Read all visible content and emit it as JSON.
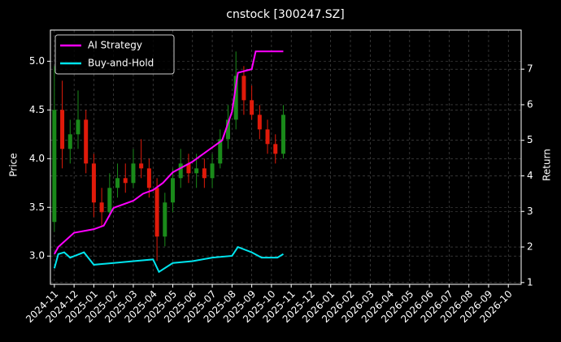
{
  "chart_data": {
    "type": "candlestick",
    "title": "cnstock [300247.SZ]",
    "ylabel": "Price",
    "y2label": "Return",
    "x": [
      0,
      0.4,
      0.8,
      1.2,
      1.6,
      2.0,
      2.4,
      2.8,
      3.2,
      3.6,
      4.0,
      4.4,
      4.8,
      5.2,
      5.6,
      6.0,
      6.4,
      6.8,
      7.2,
      7.6,
      8.0,
      8.4,
      8.8,
      9.2,
      9.6,
      10.0,
      10.4,
      10.8,
      11.2,
      11.6
    ],
    "open": [
      3.35,
      4.5,
      4.1,
      4.25,
      4.4,
      3.95,
      3.55,
      3.45,
      3.7,
      3.8,
      3.75,
      3.95,
      3.9,
      3.7,
      3.2,
      3.55,
      3.8,
      3.95,
      3.85,
      3.9,
      3.8,
      3.95,
      4.2,
      4.4,
      4.85,
      4.6,
      4.45,
      4.3,
      4.15,
      4.05
    ],
    "high": [
      4.95,
      4.8,
      4.4,
      4.7,
      4.5,
      4.05,
      3.7,
      3.85,
      3.95,
      3.95,
      4.1,
      4.2,
      4.0,
      3.8,
      3.65,
      3.9,
      4.1,
      4.05,
      4.05,
      4.0,
      4.05,
      4.3,
      4.55,
      5.1,
      4.95,
      4.75,
      4.55,
      4.4,
      4.25,
      4.55
    ],
    "low": [
      3.25,
      3.9,
      3.95,
      4.1,
      3.85,
      3.4,
      3.3,
      3.4,
      3.6,
      3.65,
      3.7,
      3.8,
      3.6,
      2.95,
      3.1,
      3.45,
      3.7,
      3.75,
      3.7,
      3.7,
      3.7,
      3.9,
      4.1,
      4.3,
      4.45,
      4.4,
      4.2,
      4.05,
      3.95,
      4.0
    ],
    "close": [
      4.5,
      4.1,
      4.25,
      4.4,
      3.95,
      3.55,
      3.45,
      3.7,
      3.8,
      3.75,
      3.95,
      3.9,
      3.7,
      3.2,
      3.55,
      3.8,
      3.95,
      3.85,
      3.9,
      3.8,
      3.95,
      4.2,
      4.4,
      4.85,
      4.6,
      4.45,
      4.3,
      4.15,
      4.05,
      4.45
    ],
    "up_color": "#1a8a1a",
    "down_color": "#e01a0a",
    "series": [
      {
        "name": "AI Strategy",
        "color": "#ff00ff",
        "axis": "y2",
        "x": [
          0,
          0.2,
          0.6,
          1.0,
          2.0,
          2.5,
          3.0,
          4.0,
          4.5,
          5.0,
          5.5,
          6.0,
          7.0,
          7.5,
          8.5,
          9.0,
          9.3,
          10.0,
          10.2,
          11.6
        ],
        "values": [
          1.8,
          2.0,
          2.2,
          2.4,
          2.5,
          2.6,
          3.1,
          3.3,
          3.5,
          3.6,
          3.8,
          4.1,
          4.4,
          4.6,
          5.0,
          5.8,
          6.9,
          7.0,
          7.5,
          7.5
        ]
      },
      {
        "name": "Buy-and-Hold",
        "color": "#00e5ee",
        "axis": "y2",
        "x": [
          0,
          0.2,
          0.5,
          0.8,
          1.5,
          2.0,
          3.0,
          4.0,
          5.0,
          5.3,
          6.0,
          7.0,
          8.0,
          9.0,
          9.3,
          10.0,
          10.5,
          11.3,
          11.6
        ],
        "values": [
          1.4,
          1.8,
          1.85,
          1.7,
          1.85,
          1.5,
          1.55,
          1.6,
          1.65,
          1.3,
          1.55,
          1.6,
          1.7,
          1.75,
          2.0,
          1.85,
          1.7,
          1.7,
          1.8
        ]
      }
    ],
    "xlim": [
      -0.2,
      23.65
    ],
    "xticks": [
      {
        "value": 0,
        "label": "2024-11"
      },
      {
        "value": 1,
        "label": "2024-12"
      },
      {
        "value": 2,
        "label": "2025-01"
      },
      {
        "value": 3,
        "label": "2025-02"
      },
      {
        "value": 4,
        "label": "2025-03"
      },
      {
        "value": 5,
        "label": "2025-04"
      },
      {
        "value": 6,
        "label": "2025-05"
      },
      {
        "value": 7,
        "label": "2025-06"
      },
      {
        "value": 8,
        "label": "2025-07"
      },
      {
        "value": 9,
        "label": "2025-08"
      },
      {
        "value": 10,
        "label": "2025-09"
      },
      {
        "value": 11,
        "label": "2025-10"
      },
      {
        "value": 12,
        "label": "2025-11"
      },
      {
        "value": 13,
        "label": "2025-12"
      },
      {
        "value": 14,
        "label": "2026-01"
      },
      {
        "value": 15,
        "label": "2026-02"
      },
      {
        "value": 16,
        "label": "2026-03"
      },
      {
        "value": 17,
        "label": "2026-04"
      },
      {
        "value": 18,
        "label": "2026-05"
      },
      {
        "value": 19,
        "label": "2026-06"
      },
      {
        "value": 20,
        "label": "2026-07"
      },
      {
        "value": 21,
        "label": "2026-08"
      },
      {
        "value": 22,
        "label": "2026-09"
      },
      {
        "value": 23,
        "label": "2026-10"
      }
    ],
    "ylim": [
      2.71,
      5.32
    ],
    "yticks": [
      {
        "value": 3.0,
        "label": "3.0"
      },
      {
        "value": 3.5,
        "label": "3.5"
      },
      {
        "value": 4.0,
        "label": "4.0"
      },
      {
        "value": 4.5,
        "label": "4.5"
      },
      {
        "value": 5.0,
        "label": "5.0"
      }
    ],
    "y2lim": [
      0.95,
      8.1
    ],
    "y2ticks": [
      1,
      2,
      3,
      4,
      5,
      6,
      7
    ],
    "grid": true,
    "legend": "upper left"
  }
}
